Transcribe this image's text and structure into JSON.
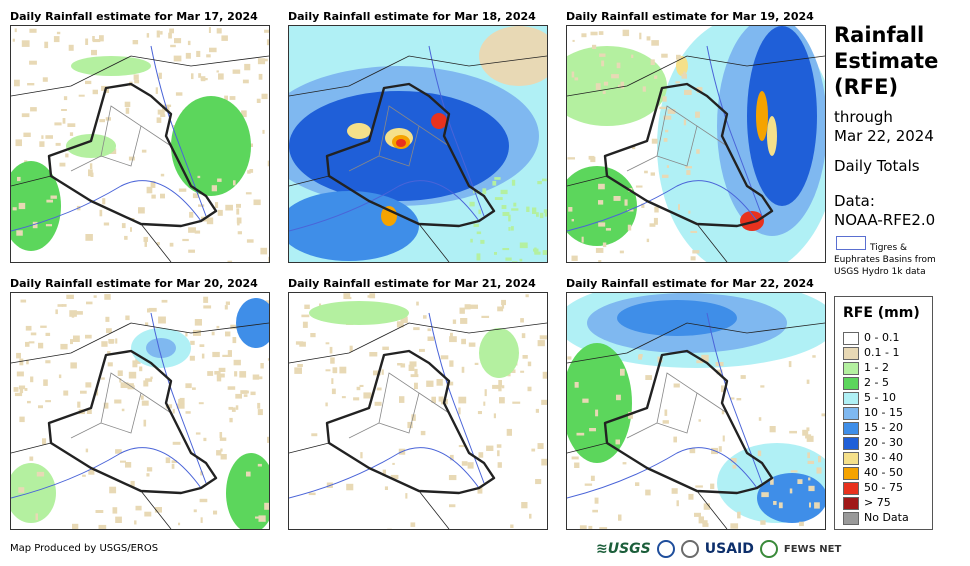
{
  "panels": [
    {
      "title": "Daily Rainfall estimate for Mar 17, 2024",
      "wetness": "light"
    },
    {
      "title": "Daily Rainfall estimate for Mar 18, 2024",
      "wetness": "heavy"
    },
    {
      "title": "Daily Rainfall estimate for Mar 19, 2024",
      "wetness": "east-heavy"
    },
    {
      "title": "Daily Rainfall estimate for Mar 20, 2024",
      "wetness": "light-north"
    },
    {
      "title": "Daily Rainfall estimate for Mar 21, 2024",
      "wetness": "very-light"
    },
    {
      "title": "Daily Rainfall estimate for Mar 22, 2024",
      "wetness": "north-south"
    }
  ],
  "sidebar": {
    "title_line1": "Rainfall",
    "title_line2": "Estimate",
    "title_line3": "(RFE)",
    "through_label": "through",
    "through_date": "Mar 22, 2024",
    "totals_label": "Daily Totals",
    "data_label": "Data:",
    "data_source": "NOAA-RFE2.0",
    "basin_line1": "Tigres &",
    "basin_line2": "Euphrates Basins from",
    "basin_line3": "USGS Hydro 1k data"
  },
  "legend": {
    "title": "RFE (mm)",
    "items": [
      {
        "label": "0 - 0.1",
        "color": "#ffffff"
      },
      {
        "label": "0.1 - 1",
        "color": "#e8d9b5"
      },
      {
        "label": "1 - 2",
        "color": "#b4f0a0"
      },
      {
        "label": "2 - 5",
        "color": "#5cd65c"
      },
      {
        "label": "5 - 10",
        "color": "#b0f0f5"
      },
      {
        "label": "10 - 15",
        "color": "#7fb8f0"
      },
      {
        "label": "15 - 20",
        "color": "#3f8ee8"
      },
      {
        "label": "20 - 30",
        "color": "#1f5fd8"
      },
      {
        "label": "30 - 40",
        "color": "#f5e08a"
      },
      {
        "label": "40 - 50",
        "color": "#f5a300"
      },
      {
        "label": "50 - 75",
        "color": "#e8321e"
      },
      {
        "label": "> 75",
        "color": "#a01818"
      },
      {
        "label": "No Data",
        "color": "#9a9a9a"
      }
    ]
  },
  "footer": {
    "credit": "Map Produced by USGS/EROS",
    "logo_usgs": "≋USGS",
    "logo_usaid": "USAID",
    "logo_fews": "FEWS NET"
  }
}
